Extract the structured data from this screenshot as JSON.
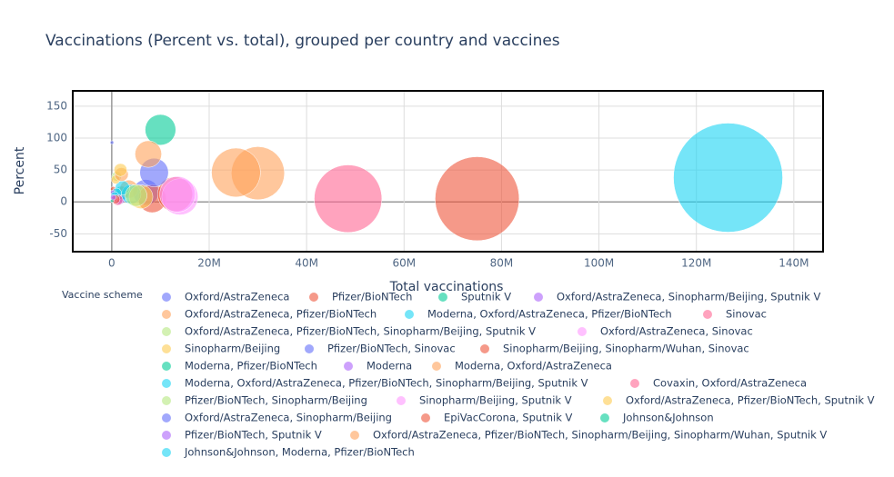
{
  "chart_data": {
    "type": "bubble",
    "title": "Vaccinations (Percent vs. total), grouped per country and vaccines",
    "x_label": "Total vaccinations",
    "y_label": "Percent",
    "legend_title": "Vaccine scheme",
    "xlim": [
      -8000000,
      146000000
    ],
    "xticks": [
      0,
      {
        "value": 20000000,
        "label": "20M"
      },
      {
        "value": 40000000,
        "label": "40M"
      },
      {
        "value": 60000000,
        "label": "60M"
      },
      {
        "value": 80000000,
        "label": "80M"
      },
      {
        "value": 100000000,
        "label": "100M"
      },
      {
        "value": 120000000,
        "label": "120M"
      },
      {
        "value": 140000000,
        "label": "140M"
      }
    ],
    "ylim": [
      -78,
      174
    ],
    "yticks": [
      -50,
      0,
      50,
      100,
      150
    ],
    "grid": true,
    "series": [
      {
        "name": "Oxford/AstraZeneca",
        "color": "#636efa",
        "x": [
          7000000,
          1500000,
          500000
        ],
        "values": [
          15,
          8,
          3
        ]
      },
      {
        "name": "Pfizer/BioNTech",
        "color": "#EF553B",
        "x": [
          8300000,
          13000000,
          1200000,
          300000
        ],
        "values": [
          5,
          12,
          10,
          20
        ]
      },
      {
        "name": "Sputnik V",
        "color": "#00cc96",
        "x": [
          2000000,
          400000
        ],
        "values": [
          14,
          3
        ]
      },
      {
        "name": "Oxford/AstraZeneca, Sinopharm/Beijing, Sputnik V",
        "color": "#ab63fa",
        "x": [
          1500000
        ],
        "values": [
          5
        ]
      },
      {
        "name": "Oxford/AstraZeneca, Pfizer/BioNTech",
        "color": "#FFA15A",
        "x": [
          30000000,
          25500000,
          3500000
        ],
        "values": [
          45,
          46,
          20
        ]
      },
      {
        "name": "Moderna, Oxford/AstraZeneca, Pfizer/BioNTech",
        "color": "#19d3f3",
        "x": [
          4000000,
          2200000,
          1000000
        ],
        "values": [
          12,
          22,
          14
        ]
      },
      {
        "name": "Sinovac",
        "color": "#FF6692",
        "x": [
          1200000
        ],
        "values": [
          3
        ]
      },
      {
        "name": "Oxford/AstraZeneca, Pfizer/BioNTech, Sinopharm/Beijing, Sputnik V",
        "color": "#B6E880",
        "x": [
          1000000
        ],
        "values": [
          40
        ]
      },
      {
        "name": "Oxford/AstraZeneca, Sinovac",
        "color": "#FF97FF",
        "x": [
          14000000,
          13500000
        ],
        "values": [
          8,
          12
        ]
      },
      {
        "name": "Sinopharm/Beijing",
        "color": "#FECB52",
        "x": [
          6000000,
          800000
        ],
        "values": [
          8,
          35
        ]
      },
      {
        "name": "Pfizer/BioNTech, Sinovac",
        "color": "#636efa",
        "x": [
          8700000
        ],
        "values": [
          46
        ]
      },
      {
        "name": "Sinopharm/Beijing, Sinopharm/Wuhan, Sinovac",
        "color": "#EF553B",
        "x": [
          75000000
        ],
        "values": [
          5
        ]
      },
      {
        "name": "Moderna, Pfizer/BioNTech",
        "color": "#00cc96",
        "x": [
          10000000
        ],
        "values": [
          113
        ]
      },
      {
        "name": "Moderna",
        "color": "#ab63fa",
        "x": [
          200000
        ],
        "values": [
          15
        ]
      },
      {
        "name": "Moderna, Oxford/AstraZeneca",
        "color": "#FFA15A",
        "x": [
          2000000
        ],
        "values": [
          43
        ]
      },
      {
        "name": "Moderna, Oxford/AstraZeneca, Pfizer/BioNTech, Sinopharm/Beijing, Sputnik V",
        "color": "#19d3f3",
        "x": [
          600000
        ],
        "values": [
          10
        ]
      },
      {
        "name": "Covaxin, Oxford/AstraZeneca",
        "color": "#FF6692",
        "x": [
          48500000
        ],
        "values": [
          5
        ]
      },
      {
        "name": "Pfizer/BioNTech, Sinopharm/Beijing",
        "color": "#B6E880",
        "x": [
          5000000
        ],
        "values": [
          10
        ]
      },
      {
        "name": "Sinopharm/Beijing, Sputnik V",
        "color": "#FF97FF",
        "x": [
          500000
        ],
        "values": [
          5
        ]
      },
      {
        "name": "Oxford/AstraZeneca, Pfizer/BioNTech, Sputnik V",
        "color": "#FECB52",
        "x": [
          1800000
        ],
        "values": [
          50
        ]
      },
      {
        "name": "Oxford/AstraZeneca, Sinopharm/Beijing",
        "color": "#636efa",
        "x": [
          50000
        ],
        "values": [
          93
        ]
      },
      {
        "name": "EpiVacCorona, Sputnik V",
        "color": "#EF553B",
        "x": [
          800000
        ],
        "values": [
          4
        ]
      },
      {
        "name": "Johnson&Johnson",
        "color": "#00cc96",
        "x": [
          100000
        ],
        "values": [
          2
        ]
      },
      {
        "name": "Pfizer/BioNTech, Sputnik V",
        "color": "#ab63fa",
        "x": [
          300000
        ],
        "values": [
          7
        ]
      },
      {
        "name": "Oxford/AstraZeneca, Pfizer/BioNTech, Sinopharm/Beijing, Sinopharm/Wuhan, Sputnik V",
        "color": "#FFA15A",
        "x": [
          7500000
        ],
        "values": [
          75
        ]
      },
      {
        "name": "Johnson&Johnson, Moderna, Pfizer/BioNTech",
        "color": "#19d3f3",
        "x": [
          126500000
        ],
        "values": [
          38
        ]
      }
    ]
  }
}
